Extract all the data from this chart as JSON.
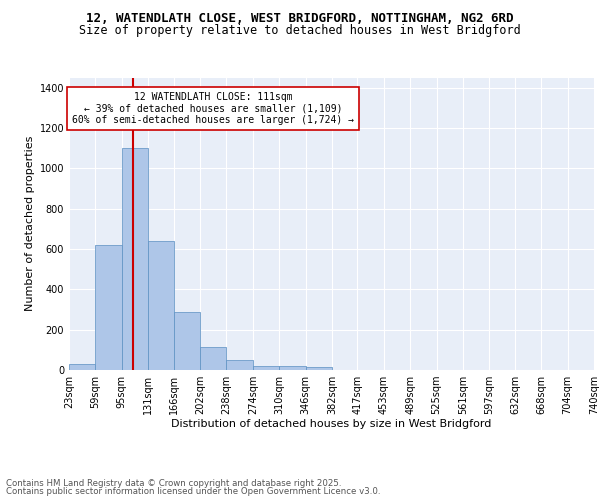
{
  "title_line1": "12, WATENDLATH CLOSE, WEST BRIDGFORD, NOTTINGHAM, NG2 6RD",
  "title_line2": "Size of property relative to detached houses in West Bridgford",
  "xlabel": "Distribution of detached houses by size in West Bridgford",
  "ylabel": "Number of detached properties",
  "bin_edges": [
    23,
    59,
    95,
    131,
    166,
    202,
    238,
    274,
    310,
    346,
    382,
    417,
    453,
    489,
    525,
    561,
    597,
    632,
    668,
    704,
    740
  ],
  "bin_labels": [
    "23sqm",
    "59sqm",
    "95sqm",
    "131sqm",
    "166sqm",
    "202sqm",
    "238sqm",
    "274sqm",
    "310sqm",
    "346sqm",
    "382sqm",
    "417sqm",
    "453sqm",
    "489sqm",
    "525sqm",
    "561sqm",
    "597sqm",
    "632sqm",
    "668sqm",
    "704sqm",
    "740sqm"
  ],
  "bar_heights": [
    30,
    620,
    1100,
    640,
    290,
    115,
    48,
    22,
    20,
    15,
    0,
    0,
    0,
    0,
    0,
    0,
    0,
    0,
    0,
    0
  ],
  "bar_color": "#aec6e8",
  "bar_edge_color": "#5a8fc2",
  "vline_x": 111,
  "vline_color": "#cc0000",
  "annotation_text": "12 WATENDLATH CLOSE: 111sqm\n← 39% of detached houses are smaller (1,109)\n60% of semi-detached houses are larger (1,724) →",
  "ylim": [
    0,
    1450
  ],
  "yticks": [
    0,
    200,
    400,
    600,
    800,
    1000,
    1200,
    1400
  ],
  "bg_color": "#e8eef8",
  "fig_bg_color": "#ffffff",
  "grid_color": "#ffffff",
  "footnote_line1": "Contains HM Land Registry data © Crown copyright and database right 2025.",
  "footnote_line2": "Contains public sector information licensed under the Open Government Licence v3.0.",
  "title_fontsize": 9,
  "subtitle_fontsize": 8.5,
  "axis_label_fontsize": 8,
  "tick_fontsize": 7,
  "annotation_fontsize": 7
}
